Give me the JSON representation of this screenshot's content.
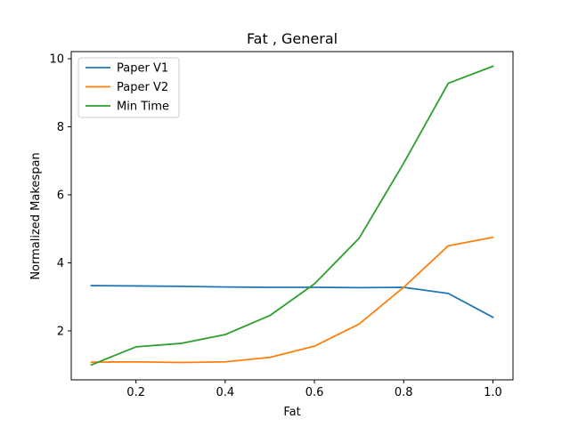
{
  "chart_data": {
    "type": "line",
    "title": "Fat , General",
    "xlabel": "Fat",
    "ylabel": "Normalized Makespan",
    "x": [
      0.1,
      0.2,
      0.3,
      0.4,
      0.5,
      0.6,
      0.7,
      0.8,
      0.9,
      1.0
    ],
    "xlim": [
      0.055,
      1.045
    ],
    "ylim": [
      0.56,
      10.21
    ],
    "xticks": [
      0.2,
      0.4,
      0.6,
      0.8,
      1.0
    ],
    "xtick_labels": [
      "0.2",
      "0.4",
      "0.6",
      "0.8",
      "1.0"
    ],
    "yticks": [
      2,
      4,
      6,
      8,
      10
    ],
    "ytick_labels": [
      "2",
      "4",
      "6",
      "8",
      "10"
    ],
    "grid": false,
    "legend_position": "top-left",
    "series": [
      {
        "name": "Paper V1",
        "color": "#1f77b4",
        "values": [
          3.33,
          3.32,
          3.31,
          3.29,
          3.28,
          3.28,
          3.27,
          3.28,
          3.1,
          2.4
        ]
      },
      {
        "name": "Paper V2",
        "color": "#ff7f0e",
        "values": [
          1.08,
          1.09,
          1.07,
          1.09,
          1.22,
          1.55,
          2.2,
          3.28,
          4.5,
          4.75
        ]
      },
      {
        "name": "Min Time",
        "color": "#2ca02c",
        "values": [
          1.0,
          1.53,
          1.63,
          1.89,
          2.45,
          3.38,
          4.72,
          6.93,
          9.28,
          9.78
        ]
      }
    ]
  }
}
